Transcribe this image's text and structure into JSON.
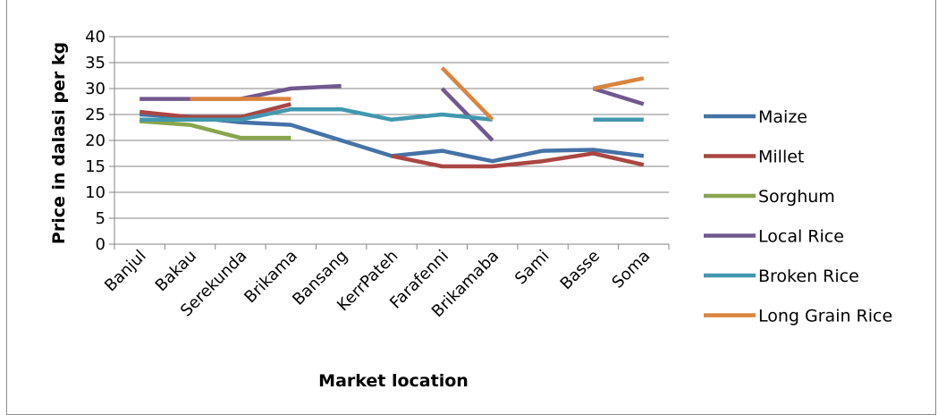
{
  "chart_data": {
    "type": "line",
    "title": "",
    "xlabel": "Market location",
    "ylabel": "Price in dalasi per kg",
    "ylim": [
      0,
      40
    ],
    "yticks": [
      0,
      5,
      10,
      15,
      20,
      25,
      30,
      35,
      40
    ],
    "grid": true,
    "legend_position": "right",
    "categories": [
      "Banjul",
      "Bakau",
      "Serekunda",
      "Brikama",
      "Bansang",
      "KerrPateh",
      "Farafenni",
      "Brikamaba",
      "Sami",
      "Basse",
      "Soma"
    ],
    "series": [
      {
        "name": "Maize",
        "color": "#4572A7",
        "values": [
          25,
          24.5,
          23.5,
          23,
          20,
          17,
          18,
          16,
          18,
          18.2,
          17
        ]
      },
      {
        "name": "Millet",
        "color": "#AA4643",
        "values": [
          25.5,
          24.5,
          24.5,
          27,
          null,
          17,
          15,
          15,
          16,
          17.5,
          15.3
        ]
      },
      {
        "name": "Sorghum",
        "color": "#89A54E",
        "values": [
          23.7,
          23,
          20.5,
          20.5,
          null,
          null,
          null,
          null,
          null,
          null,
          null
        ]
      },
      {
        "name": "Local Rice",
        "color": "#71588F",
        "values": [
          28,
          28,
          28,
          30,
          30.5,
          null,
          30,
          20,
          null,
          30,
          27
        ]
      },
      {
        "name": "Broken Rice",
        "color": "#4198AF",
        "values": [
          24,
          24,
          24,
          26,
          26,
          24,
          25,
          24,
          null,
          24,
          24
        ]
      },
      {
        "name": "Long Grain Rice",
        "color": "#DB843D",
        "values": [
          null,
          28,
          28,
          28,
          null,
          null,
          34,
          24,
          null,
          30,
          32
        ]
      }
    ]
  }
}
